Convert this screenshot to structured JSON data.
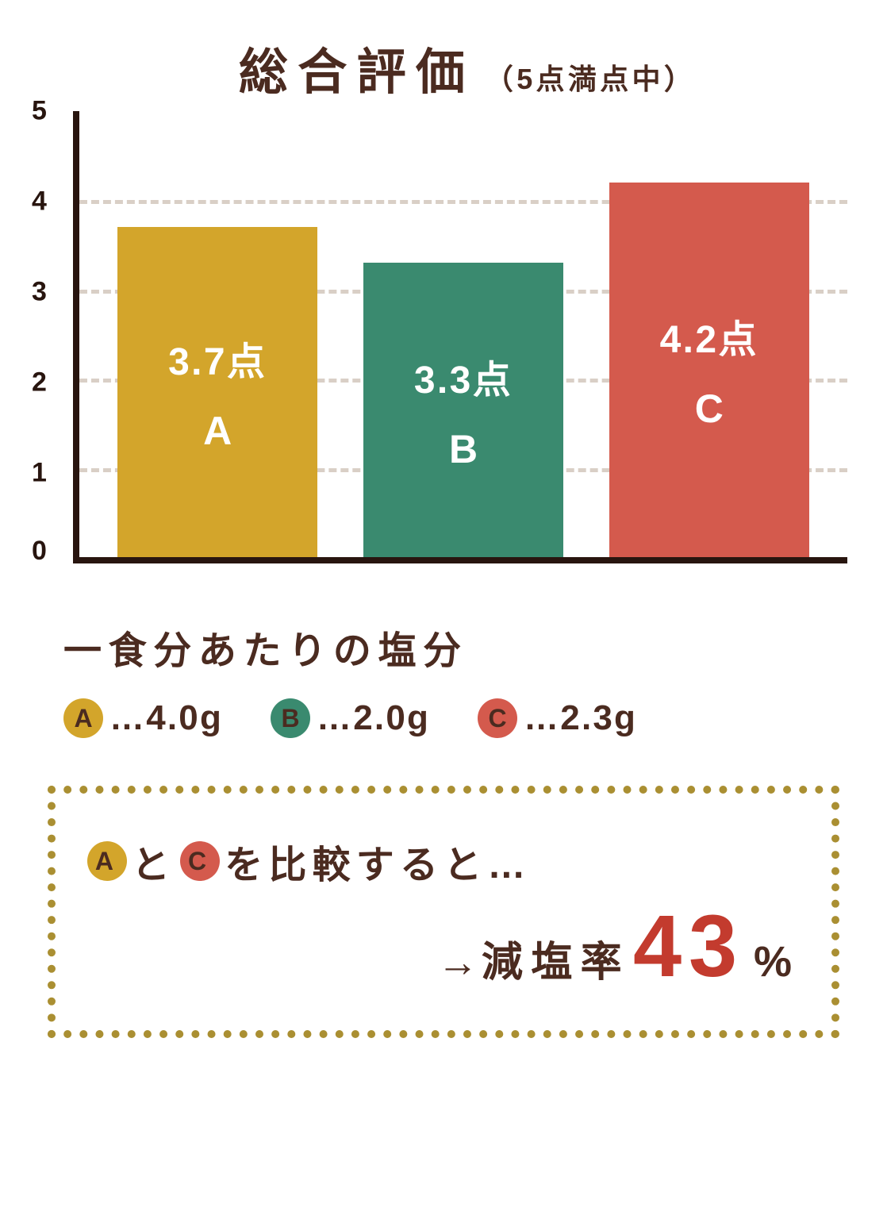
{
  "title": {
    "main": "総合評価",
    "sub": "（5点満点中）"
  },
  "chart": {
    "type": "bar",
    "ylim": [
      0,
      5
    ],
    "ytick_step": 1,
    "yticks": [
      0,
      1,
      2,
      3,
      4,
      5
    ],
    "grid_ticks": [
      1,
      2,
      3,
      4
    ],
    "axis_color": "#28150f",
    "grid_color": "#d9cfc6",
    "background_color": "#ffffff",
    "bar_width_pct": 26,
    "bar_positions_pct": [
      5,
      37,
      69
    ],
    "bars": [
      {
        "label": "A",
        "value": 3.7,
        "value_text": "3.7点",
        "color": "#d3a52b"
      },
      {
        "label": "B",
        "value": 3.3,
        "value_text": "3.3点",
        "color": "#3a8a6f"
      },
      {
        "label": "C",
        "value": 4.2,
        "value_text": "4.2点",
        "color": "#d45a4d"
      }
    ],
    "value_fontsize": 48,
    "label_fontsize": 50,
    "text_color": "#ffffff"
  },
  "salt": {
    "title": "一食分あたりの塩分",
    "items": [
      {
        "letter": "A",
        "circle_color": "#d3a52b",
        "text": "…4.0g"
      },
      {
        "letter": "B",
        "circle_color": "#3a8a6f",
        "text": "…2.0g"
      },
      {
        "letter": "C",
        "circle_color": "#d45a4d",
        "text": "…2.3g"
      }
    ]
  },
  "box": {
    "border_color": "#aa8f32",
    "compare": {
      "letter1": "A",
      "color1": "#d3a52b",
      "mid1": "と",
      "letter2": "C",
      "color2": "#d45a4d",
      "tail": "を比較すると…"
    },
    "result": {
      "arrow": "→",
      "label": "減塩率",
      "number": "43",
      "number_color": "#c33b2e",
      "percent": "%"
    }
  },
  "colors": {
    "text_dark": "#4b2b20",
    "axis": "#28150f"
  }
}
